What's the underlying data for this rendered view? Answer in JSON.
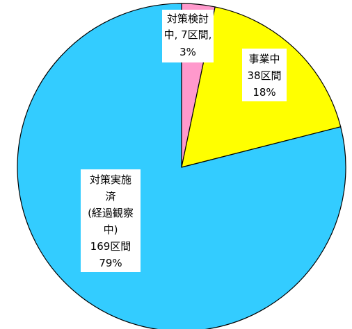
{
  "chart_data": {
    "type": "pie",
    "start": "top",
    "direction": "clockwise",
    "slices": [
      {
        "key": "consider",
        "lines": [
          "対策検討",
          "中, 7区間,",
          "3%"
        ],
        "count": 7,
        "percent": 3,
        "color": "#ff99cc"
      },
      {
        "key": "inprogress",
        "lines": [
          "事業中",
          "38区間",
          "18%"
        ],
        "count": 38,
        "percent": 18,
        "color": "#ffff00"
      },
      {
        "key": "done",
        "lines": [
          "対策実施",
          "済",
          "(経過観察",
          "中)",
          "169区間",
          "79%"
        ],
        "count": 169,
        "percent": 79,
        "color": "#33ccff"
      }
    ]
  }
}
